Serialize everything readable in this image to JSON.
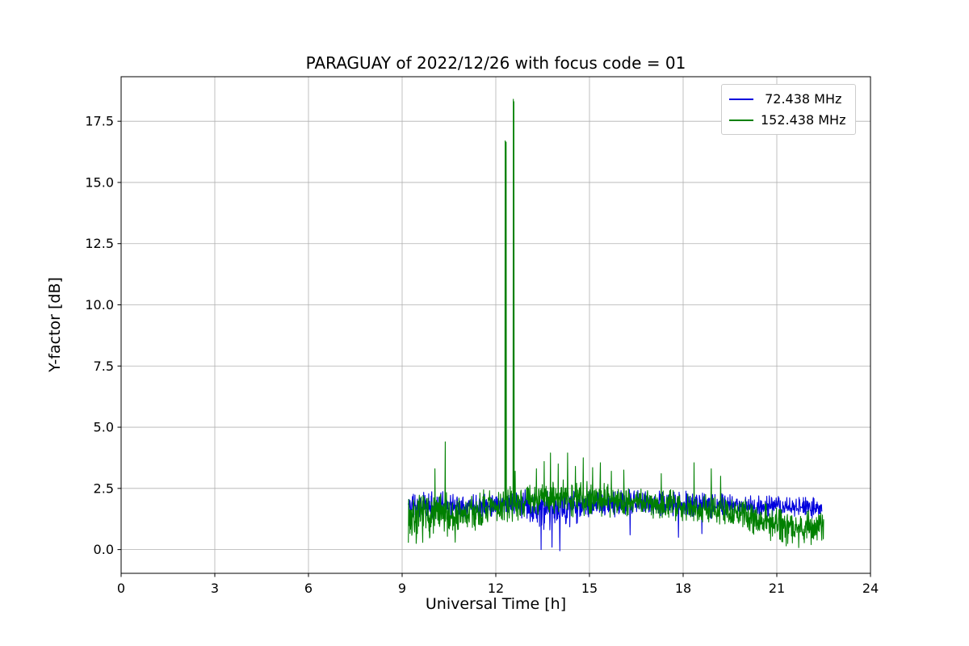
{
  "chart_data": {
    "type": "line",
    "title": "PARAGUAY of 2022/12/26 with focus code = 01",
    "xlabel": "Universal Time [h]",
    "ylabel": "Y-factor [dB]",
    "xlim": [
      0,
      24
    ],
    "ylim": [
      -0.97,
      19.32
    ],
    "xticks": [
      0,
      3,
      6,
      9,
      12,
      15,
      18,
      21,
      24
    ],
    "xtick_labels": [
      "0",
      "3",
      "6",
      "9",
      "12",
      "15",
      "18",
      "21",
      "24"
    ],
    "yticks": [
      0,
      2.5,
      5,
      7.5,
      10,
      12.5,
      15,
      17.5
    ],
    "ytick_labels": [
      "0.0",
      "2.5",
      "5.0",
      "7.5",
      "10.0",
      "12.5",
      "15.0",
      "17.5"
    ],
    "grid": true,
    "grid_color": "#b0b0b0",
    "axes_color": "#000000",
    "background": "#ffffff",
    "legend": {
      "position": "upper-right",
      "border_color": "#cccccc",
      "background": "#ffffff"
    },
    "series": [
      {
        "name": " 72.438 MHz",
        "color": "#0000dd",
        "x_start": 9.2,
        "x_end": 22.45,
        "sample_step_h": 0.01,
        "seed": 11,
        "envelope": [
          [
            9.2,
            1.8,
            0.65
          ],
          [
            11.0,
            1.8,
            0.6
          ],
          [
            12.5,
            1.9,
            0.5
          ],
          [
            13.0,
            1.8,
            0.7
          ],
          [
            13.6,
            1.55,
            1.0
          ],
          [
            14.2,
            1.7,
            0.9
          ],
          [
            15.0,
            1.9,
            0.6
          ],
          [
            17.0,
            1.9,
            0.6
          ],
          [
            19.0,
            1.8,
            0.55
          ],
          [
            21.0,
            1.75,
            0.5
          ],
          [
            22.45,
            1.7,
            0.55
          ]
        ],
        "spikes": [],
        "dips": [
          [
            13.45,
            0.0
          ],
          [
            13.8,
            0.1
          ],
          [
            14.05,
            -0.05
          ],
          [
            16.3,
            0.6
          ],
          [
            17.85,
            0.5
          ],
          [
            18.6,
            0.65
          ]
        ]
      },
      {
        "name": "152.438 MHz",
        "color": "#008000",
        "x_start": 9.2,
        "x_end": 22.5,
        "sample_step_h": 0.01,
        "seed": 7,
        "envelope": [
          [
            9.2,
            1.3,
            1.1
          ],
          [
            10.0,
            1.4,
            1.1
          ],
          [
            11.0,
            1.4,
            1.0
          ],
          [
            12.0,
            1.7,
            0.85
          ],
          [
            13.0,
            2.0,
            0.7
          ],
          [
            14.0,
            2.1,
            0.85
          ],
          [
            15.0,
            2.1,
            0.85
          ],
          [
            16.0,
            2.0,
            0.75
          ],
          [
            17.0,
            1.9,
            0.7
          ],
          [
            18.0,
            1.8,
            0.7
          ],
          [
            19.0,
            1.6,
            0.7
          ],
          [
            20.0,
            1.4,
            0.7
          ],
          [
            21.0,
            1.1,
            0.85
          ],
          [
            21.8,
            0.9,
            0.85
          ],
          [
            22.5,
            1.0,
            0.75
          ]
        ],
        "spikes": [
          [
            10.05,
            3.3
          ],
          [
            10.38,
            4.4
          ],
          [
            12.3,
            16.7
          ],
          [
            12.33,
            16.65
          ],
          [
            12.56,
            18.4
          ],
          [
            12.575,
            18.3
          ],
          [
            12.62,
            3.2
          ],
          [
            13.3,
            3.3
          ],
          [
            13.55,
            3.6
          ],
          [
            13.75,
            3.95
          ],
          [
            14.0,
            3.5
          ],
          [
            14.3,
            3.95
          ],
          [
            14.55,
            3.4
          ],
          [
            14.8,
            3.75
          ],
          [
            15.1,
            3.35
          ],
          [
            15.35,
            3.55
          ],
          [
            15.7,
            3.2
          ],
          [
            16.1,
            3.25
          ],
          [
            17.3,
            3.1
          ],
          [
            18.35,
            3.55
          ],
          [
            18.9,
            3.3
          ],
          [
            19.2,
            3.0
          ]
        ],
        "dips": [
          [
            9.45,
            0.25
          ],
          [
            10.7,
            0.3
          ],
          [
            21.3,
            0.15
          ],
          [
            21.7,
            0.08
          ],
          [
            22.1,
            0.2
          ]
        ]
      }
    ]
  }
}
